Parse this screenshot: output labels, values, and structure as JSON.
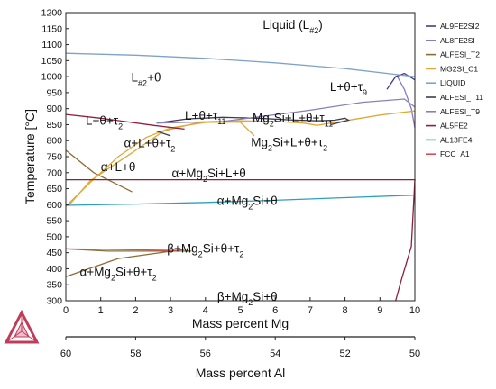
{
  "chart_data": {
    "type": "line",
    "x_axis": {
      "label": "Mass percent Mg",
      "range": [
        0,
        10
      ],
      "ticks": [
        "0",
        "1",
        "2",
        "3",
        "4",
        "5",
        "6",
        "7",
        "8",
        "9",
        "10"
      ]
    },
    "secondary_x_axis": {
      "label": "Mass percent Al",
      "ticks": [
        {
          "label": "60",
          "mg": 0
        },
        {
          "label": "58",
          "mg": 2
        },
        {
          "label": "56",
          "mg": 4
        },
        {
          "label": "54",
          "mg": 6
        },
        {
          "label": "52",
          "mg": 8
        },
        {
          "label": "50",
          "mg": 10
        }
      ]
    },
    "y_axis": {
      "label": "Temperature [°C]",
      "range": [
        300,
        1200
      ],
      "ticks": [
        "300",
        "350",
        "400",
        "450",
        "500",
        "550",
        "600",
        "650",
        "700",
        "750",
        "800",
        "850",
        "900",
        "950",
        "1000",
        "1050",
        "1100",
        "1150",
        "1200"
      ]
    },
    "legend_position": "right",
    "series": [
      {
        "name": "AL9FE2SI2",
        "color": "#4b3b86",
        "points": [
          [
            9.2,
            960
          ],
          [
            9.45,
            1000
          ],
          [
            9.7,
            1010
          ],
          [
            10,
            990
          ]
        ]
      },
      {
        "name": "AL8FE2SI",
        "color": "#8b7ac2",
        "points": [
          [
            9.5,
            1000
          ],
          [
            9.7,
            960
          ],
          [
            9.9,
            900
          ],
          [
            10,
            840
          ]
        ]
      },
      {
        "name": "ALFESI_T2",
        "color": "#8a6c35",
        "points": [
          [
            0,
            770
          ],
          [
            0.8,
            700
          ],
          [
            1.9,
            640
          ],
          [
            0,
            375
          ],
          [
            1.5,
            432
          ],
          [
            3.5,
            462
          ],
          [
            0,
            462
          ],
          [
            1.2,
            455
          ],
          [
            3.6,
            455
          ]
        ]
      },
      {
        "name": "MG2SI_C1",
        "color": "#e0a838",
        "points": [
          [
            0,
            595
          ],
          [
            0.8,
            680
          ],
          [
            1.5,
            750
          ],
          [
            2.3,
            810
          ],
          [
            3,
            840
          ],
          [
            4,
            857
          ],
          [
            5,
            862
          ],
          [
            6,
            860
          ],
          [
            6.8,
            855
          ],
          [
            7.2,
            848
          ],
          [
            8,
            862
          ],
          [
            9,
            880
          ],
          [
            10,
            893
          ],
          [
            0.1,
            600
          ],
          [
            0.7,
            675
          ],
          [
            1.8,
            755
          ],
          [
            2.8,
            830
          ],
          [
            3.8,
            857
          ],
          [
            5,
            858
          ],
          [
            5.4,
            815
          ]
        ]
      },
      {
        "name": "LIQUID",
        "color": "#7fa3c7",
        "points": [
          [
            0,
            1073
          ],
          [
            2,
            1067
          ],
          [
            4,
            1057
          ],
          [
            6,
            1043
          ],
          [
            8,
            1025
          ],
          [
            10,
            1000
          ]
        ]
      },
      {
        "name": "ALFESI_T11",
        "color": "#3c3c4e",
        "points": [
          [
            2.6,
            855
          ],
          [
            3.5,
            868
          ],
          [
            4.5,
            873
          ],
          [
            5.5,
            870
          ],
          [
            6.4,
            865
          ],
          [
            7.2,
            862
          ],
          [
            7.7,
            864
          ],
          [
            8,
            870
          ],
          [
            8.1,
            864
          ],
          [
            7.6,
            850
          ],
          [
            6.5,
            830
          ],
          [
            5.5,
            820
          ],
          [
            4.5,
            812
          ],
          [
            3.8,
            808
          ],
          [
            3,
            815
          ],
          [
            2.6,
            830
          ]
        ]
      },
      {
        "name": "ALFESI_T9",
        "color": "#8a7fb8",
        "points": [
          [
            2.6,
            855
          ],
          [
            4.5,
            860
          ],
          [
            7,
            895
          ],
          [
            8.5,
            920
          ],
          [
            9.7,
            930
          ],
          [
            10,
            905
          ]
        ]
      },
      {
        "name": "AL5FE2",
        "color": "#8e1f3f",
        "points": [
          [
            0,
            882
          ],
          [
            1,
            870
          ],
          [
            2.5,
            848
          ],
          [
            3.4,
            836
          ],
          [
            0,
            678
          ],
          [
            5,
            678
          ],
          [
            10,
            678
          ],
          [
            9.9,
            470
          ],
          [
            9.6,
            360
          ],
          [
            9.45,
            300
          ]
        ]
      },
      {
        "name": "AL13FE4",
        "color": "#2f9fb8",
        "points": [
          [
            0,
            598
          ],
          [
            2,
            602
          ],
          [
            4,
            607
          ],
          [
            6,
            614
          ],
          [
            8,
            622
          ],
          [
            10,
            630
          ]
        ]
      },
      {
        "name": "FCC_A1",
        "color": "#e04a5a",
        "points": [
          [
            0,
            462
          ],
          [
            1.5,
            460
          ],
          [
            3.2,
            457
          ]
        ]
      }
    ],
    "regions": [
      {
        "label": "Liquid (L#2)",
        "at": [
          6.5,
          1150
        ]
      },
      {
        "label": "L#2+θ",
        "at": [
          2.3,
          985
        ]
      },
      {
        "label": "L+θ+τ9",
        "at": [
          8.1,
          955
        ]
      },
      {
        "label": "L+θ+τ2",
        "at": [
          1.1,
          850
        ]
      },
      {
        "label": "L+θ+τ11",
        "at": [
          4.0,
          865
        ]
      },
      {
        "label": "Mg2Si+L+θ+τ11",
        "at": [
          6.5,
          858
        ]
      },
      {
        "label": "α+L+θ+τ2",
        "at": [
          2.4,
          780
        ]
      },
      {
        "label": "Mg2Si+L+θ+τ2",
        "at": [
          6.4,
          783
        ]
      },
      {
        "label": "α+L+θ",
        "at": [
          1.5,
          705
        ]
      },
      {
        "label": "α+Mg2Si+L+θ",
        "at": [
          4.1,
          686
        ]
      },
      {
        "label": "α+Mg2Si+θ",
        "at": [
          5.2,
          600
        ]
      },
      {
        "label": "β+Mg2Si+θ+τ2",
        "at": [
          4.0,
          450
        ]
      },
      {
        "label": "α+Mg2Si+θ+τ2",
        "at": [
          1.5,
          378
        ]
      },
      {
        "label": "β+Mg2Si+θ",
        "at": [
          5.2,
          300
        ]
      }
    ]
  }
}
